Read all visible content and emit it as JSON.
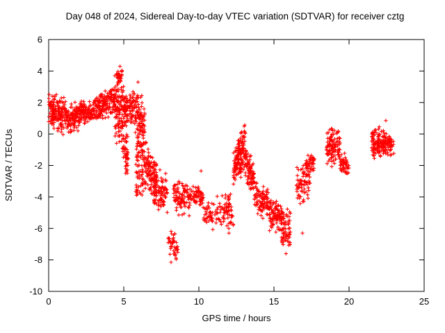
{
  "title": "Day 048 of 2024, Sidereal Day-to-day VTEC variation (SDTVAR) for receiver cztg",
  "chart_data": {
    "type": "scatter",
    "title": "Day 048 of 2024, Sidereal Day-to-day VTEC variation (SDTVAR) for receiver cztg",
    "xlabel": "GPS time / hours",
    "ylabel": "SDTVAR / TECUs",
    "xlim": [
      0,
      25
    ],
    "ylim": [
      -10,
      6
    ],
    "xticks": [
      0,
      5,
      10,
      15,
      20,
      25
    ],
    "yticks": [
      -10,
      -8,
      -6,
      -4,
      -2,
      0,
      2,
      4,
      6
    ],
    "grid": false,
    "legend": "none",
    "marker": "plus",
    "marker_color": "#ff0000",
    "series_name": "SDTVAR",
    "segments": [
      {
        "x0": 0.0,
        "x1": 0.35,
        "y0": 1.6,
        "y1": 1.6,
        "spread": 1.1,
        "n": 40
      },
      {
        "x0": 0.2,
        "x1": 1.2,
        "y0": 1.3,
        "y1": 1.1,
        "spread": 1.3,
        "n": 130
      },
      {
        "x0": 1.2,
        "x1": 2.1,
        "y0": 0.9,
        "y1": 1.2,
        "spread": 1.0,
        "n": 110
      },
      {
        "x0": 2.1,
        "x1": 2.8,
        "y0": 1.4,
        "y1": 1.3,
        "spread": 0.8,
        "n": 80
      },
      {
        "x0": 2.8,
        "x1": 3.6,
        "y0": 1.5,
        "y1": 1.8,
        "spread": 0.9,
        "n": 90
      },
      {
        "x0": 3.6,
        "x1": 4.4,
        "y0": 1.8,
        "y1": 2.2,
        "spread": 1.0,
        "n": 90
      },
      {
        "x0": 4.4,
        "x1": 5.0,
        "y0": 1.8,
        "y1": 1.4,
        "spread": 2.4,
        "n": 110
      },
      {
        "x0": 4.55,
        "x1": 4.9,
        "y0": 3.5,
        "y1": 3.9,
        "spread": 0.5,
        "n": 25
      },
      {
        "x0": 4.9,
        "x1": 5.3,
        "y0": -0.5,
        "y1": -1.6,
        "spread": 1.5,
        "n": 45
      },
      {
        "x0": 5.0,
        "x1": 5.7,
        "y0": 1.5,
        "y1": 1.8,
        "spread": 1.2,
        "n": 80
      },
      {
        "x0": 5.7,
        "x1": 6.4,
        "y0": 1.2,
        "y1": 0.8,
        "spread": 1.9,
        "n": 95
      },
      {
        "x0": 5.8,
        "x1": 6.45,
        "y0": -2.3,
        "y1": -1.9,
        "spread": 2.3,
        "n": 85
      },
      {
        "x0": 6.45,
        "x1": 7.2,
        "y0": -2.0,
        "y1": -3.2,
        "spread": 1.6,
        "n": 100
      },
      {
        "x0": 7.0,
        "x1": 7.9,
        "y0": -3.5,
        "y1": -4.0,
        "spread": 1.6,
        "n": 90
      },
      {
        "x0": 7.9,
        "x1": 8.6,
        "y0": -6.8,
        "y1": -7.2,
        "spread": 1.1,
        "n": 45
      },
      {
        "x0": 8.3,
        "x1": 9.4,
        "y0": -4.0,
        "y1": -4.2,
        "spread": 1.2,
        "n": 90
      },
      {
        "x0": 9.4,
        "x1": 10.3,
        "y0": -3.9,
        "y1": -4.1,
        "spread": 0.8,
        "n": 70
      },
      {
        "x0": 10.3,
        "x1": 11.2,
        "y0": -5.0,
        "y1": -5.3,
        "spread": 0.9,
        "n": 40
      },
      {
        "x0": 11.2,
        "x1": 12.3,
        "y0": -4.6,
        "y1": -5.0,
        "spread": 1.3,
        "n": 70
      },
      {
        "x0": 12.3,
        "x1": 13.1,
        "y0": -2.2,
        "y1": -0.8,
        "spread": 1.6,
        "n": 150
      },
      {
        "x0": 13.1,
        "x1": 13.7,
        "y0": -1.8,
        "y1": -3.0,
        "spread": 1.3,
        "n": 80
      },
      {
        "x0": 13.7,
        "x1": 14.7,
        "y0": -4.0,
        "y1": -4.3,
        "spread": 1.2,
        "n": 100
      },
      {
        "x0": 14.7,
        "x1": 15.5,
        "y0": -5.2,
        "y1": -5.5,
        "spread": 1.2,
        "n": 90
      },
      {
        "x0": 15.5,
        "x1": 16.1,
        "y0": -6.0,
        "y1": -6.2,
        "spread": 1.5,
        "n": 70
      },
      {
        "x0": 16.5,
        "x1": 17.4,
        "y0": -3.3,
        "y1": -3.0,
        "spread": 1.4,
        "n": 70
      },
      {
        "x0": 17.1,
        "x1": 17.7,
        "y0": -2.0,
        "y1": -1.9,
        "spread": 0.7,
        "n": 40
      },
      {
        "x0": 18.5,
        "x1": 19.4,
        "y0": -0.7,
        "y1": -0.9,
        "spread": 1.4,
        "n": 110
      },
      {
        "x0": 19.4,
        "x1": 20.0,
        "y0": -1.9,
        "y1": -2.1,
        "spread": 0.8,
        "n": 50
      },
      {
        "x0": 21.5,
        "x1": 22.4,
        "y0": -0.5,
        "y1": -0.6,
        "spread": 1.1,
        "n": 110
      },
      {
        "x0": 22.3,
        "x1": 23.0,
        "y0": -0.6,
        "y1": -0.6,
        "spread": 0.9,
        "n": 60
      }
    ],
    "outliers": [
      [
        4.75,
        4.3
      ],
      [
        5.95,
        3.3
      ],
      [
        8.15,
        -8.15
      ],
      [
        10.15,
        -2.35
      ],
      [
        12.0,
        -6.3
      ],
      [
        15.8,
        -7.6
      ],
      [
        16.9,
        -6.3
      ],
      [
        22.45,
        0.85
      ]
    ]
  }
}
